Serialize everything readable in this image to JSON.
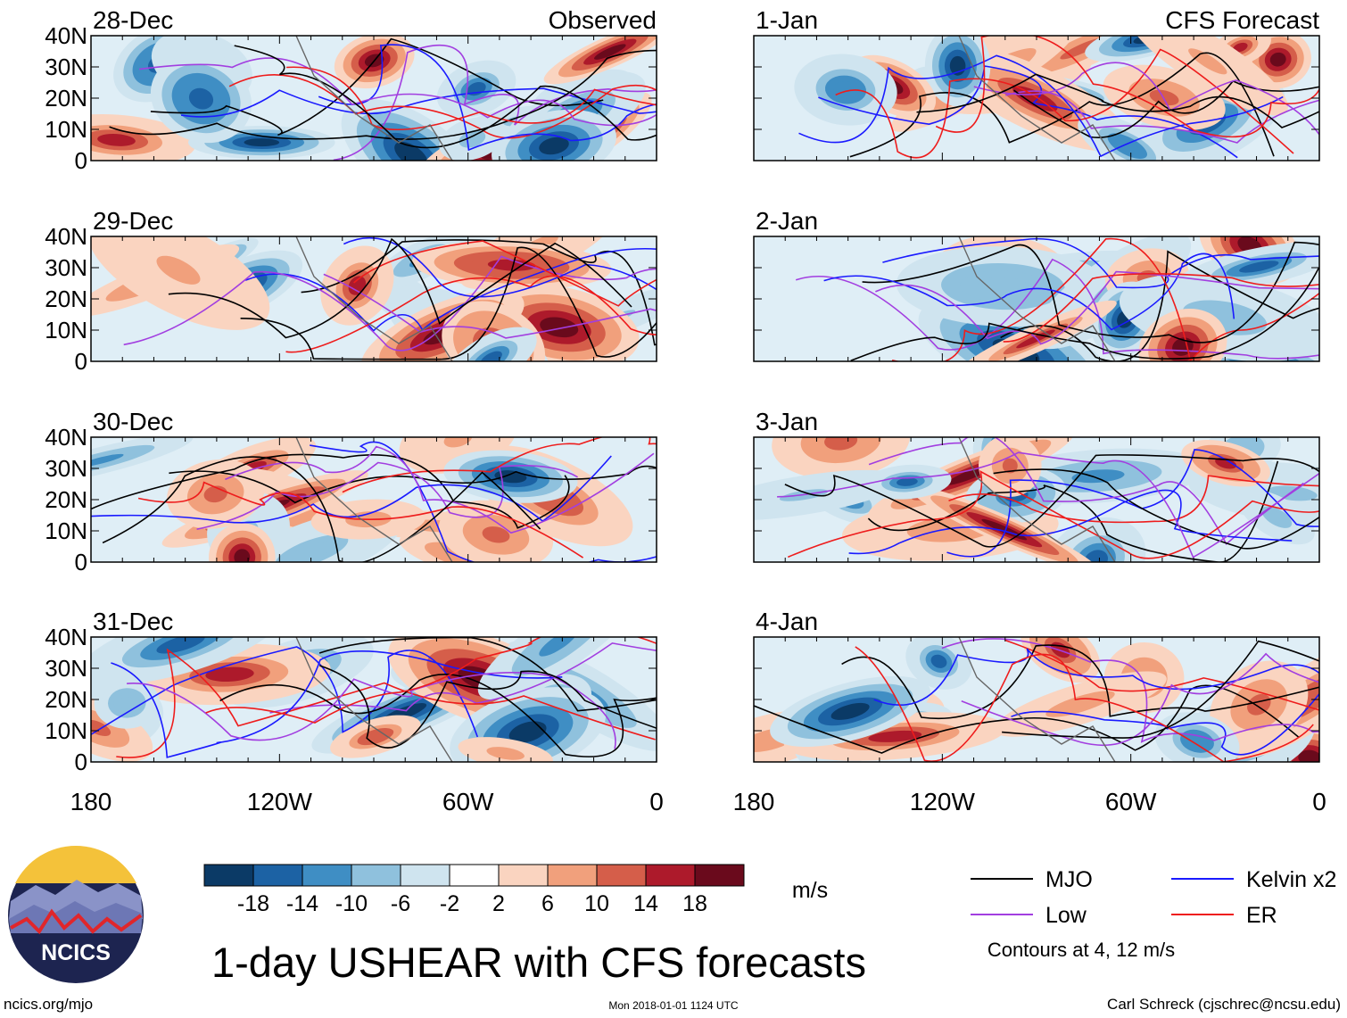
{
  "chart_data": {
    "type": "heatmap",
    "title": "1-day USHEAR with CFS forecasts",
    "units": "m/s",
    "columns": [
      {
        "label": "Observed",
        "panels": [
          "28-Dec",
          "29-Dec",
          "30-Dec",
          "31-Dec"
        ]
      },
      {
        "label": "CFS Forecast",
        "panels": [
          "1-Jan",
          "2-Jan",
          "3-Jan",
          "4-Jan"
        ]
      }
    ],
    "x_axis": {
      "ticks": [
        180,
        120,
        60,
        0
      ],
      "tick_labels": [
        "180",
        "120W",
        "60W",
        "0"
      ],
      "range_deg_west": [
        180,
        0
      ]
    },
    "y_axis": {
      "ticks": [
        0,
        10,
        20,
        30,
        40
      ],
      "tick_labels": [
        "0",
        "10N",
        "20N",
        "30N",
        "40N"
      ],
      "range_deg_north": [
        0,
        40
      ]
    },
    "colorbar": {
      "levels": [
        -18,
        -14,
        -10,
        -6,
        -2,
        2,
        6,
        10,
        14,
        18
      ],
      "tick_labels": [
        "-18",
        "-14",
        "-10",
        "-6",
        "-2",
        "2",
        "6",
        "10",
        "14",
        "18"
      ],
      "colors": [
        "#0b3a66",
        "#1c62a4",
        "#3f8ec4",
        "#8fc1dd",
        "#cfe4ef",
        "#ffffff",
        "#fad4c0",
        "#f1a07c",
        "#d55e4a",
        "#ad1a2b",
        "#6a0a1c"
      ]
    },
    "contours": {
      "legend": [
        {
          "name": "MJO",
          "color": "#000000"
        },
        {
          "name": "Kelvin x2",
          "color": "#1a1aff"
        },
        {
          "name": "Low",
          "color": "#a23ee0"
        },
        {
          "name": "ER",
          "color": "#ee1c1c"
        }
      ],
      "note": "Contours at 4, 12 m/s"
    }
  },
  "logo": {
    "text": "NCICS"
  },
  "footer": {
    "left": "ncics.org/mjo",
    "center": "Mon 2018-01-01 1124 UTC",
    "right": "Carl Schreck (cjschrec@ncsu.edu)"
  }
}
